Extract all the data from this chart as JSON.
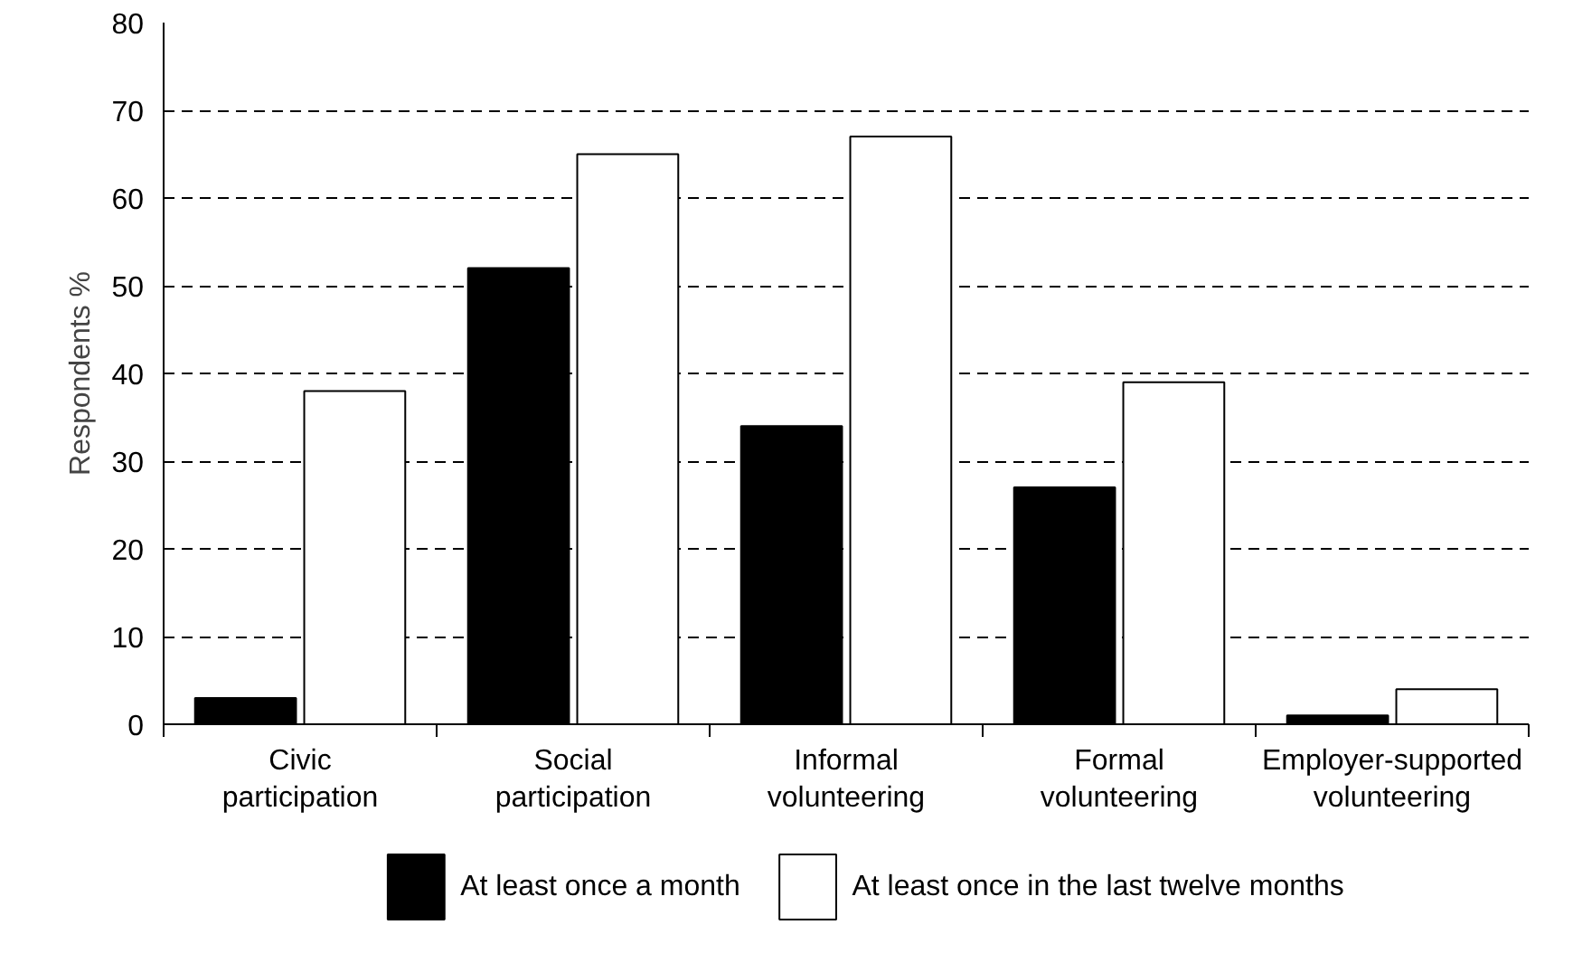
{
  "chart_data": {
    "type": "bar",
    "ylabel": "Respondents %",
    "categories": [
      "Civic participation",
      "Social participation",
      "Informal volunteering",
      "Formal volunteering",
      "Employer-supported volunteering"
    ],
    "series": [
      {
        "name": "At least once a month",
        "color": "#000000",
        "values": [
          3,
          52,
          34,
          27,
          1
        ]
      },
      {
        "name": "At least once in the last twelve months",
        "color": "#ffffff",
        "values": [
          38,
          65,
          67,
          39,
          4
        ]
      }
    ],
    "ylim": [
      0,
      80
    ],
    "yticks": [
      0,
      10,
      20,
      30,
      40,
      50,
      60,
      70,
      80
    ],
    "grid": "y",
    "legend": "bottom"
  }
}
